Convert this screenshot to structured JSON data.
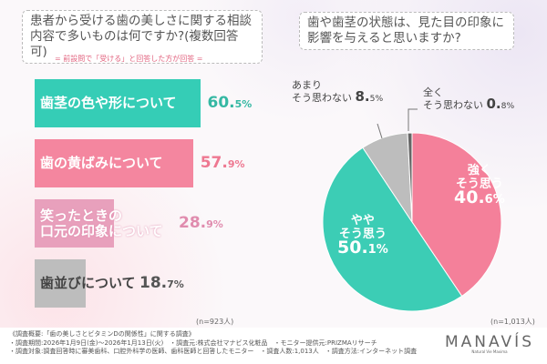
{
  "chart_data": [
    {
      "type": "bar",
      "orientation": "horizontal",
      "title": "患者から受ける歯の美しさに関する相談内容で多いものは何ですか?(複数回答可)",
      "subtitle": "= 前設問で「受ける」と回答した方が回答 =",
      "categories": [
        "歯茎の色や形について",
        "歯の黄ばみについて",
        "笑ったときの口元の印象について",
        "歯並びについて"
      ],
      "values": [
        60.5,
        57.9,
        28.9,
        18.7
      ],
      "value_labels": [
        [
          "60.",
          "5%"
        ],
        [
          "57.",
          "9%"
        ],
        [
          "28.",
          "9%"
        ],
        [
          "18.",
          "7%"
        ]
      ],
      "colors": [
        "#35cdb6",
        "#f4869f",
        "#e8a0bc",
        "#bdbdbd"
      ],
      "value_colors": [
        "#35b8a3",
        "#ee7891",
        "#e08cae",
        "#555555"
      ],
      "sample": "(n=923人)",
      "unit": "%",
      "xlim": [
        0,
        100
      ]
    },
    {
      "type": "pie",
      "title": "歯や歯茎の状態は、見た目の印象に影響を与えると思いますか?",
      "slices": [
        {
          "label": "強く そう思う",
          "value": 40.6,
          "color": "#f4809a"
        },
        {
          "label": "やや そう思う",
          "value": 50.1,
          "color": "#3ccdb5"
        },
        {
          "label": "あまり そう思わない",
          "value": 8.5,
          "color": "#bdbdbd"
        },
        {
          "label": "全く そう思わない",
          "value": 0.8,
          "color": "#666666"
        }
      ],
      "sample": "(n=1,013人)"
    }
  ],
  "labels": {
    "strong": [
      "強く",
      "そう思う",
      "40.",
      "6%"
    ],
    "some": [
      "やや",
      "そう思う",
      "50.",
      "1%"
    ],
    "notmuch": [
      "あまり",
      "そう思わない",
      "8.",
      "5%"
    ],
    "notatall": [
      "全く",
      "そう思わない",
      "0.",
      "8%"
    ],
    "bar3": [
      "笑ったときの",
      "口元の印象について"
    ]
  },
  "footer": {
    "lines": [
      "《調査概要:「歯の美しさとビタミンDの関係性」に関する調査》",
      "・調査期間:2026年1月9日(金)～2026年1月13日(火)　・調査元:株式会社マナビス化粧品　・モニター提供元:PRIZMAリサーチ",
      "・調査対象:調査回答時に審美歯科、口腔外科学の医師、歯科医師と回答したモニター　・調査人数:1,013人　・調査方法:インターネット調査"
    ],
    "logo": "MANAVÍS",
    "logo_sub": "Natural Vie Maxima"
  }
}
